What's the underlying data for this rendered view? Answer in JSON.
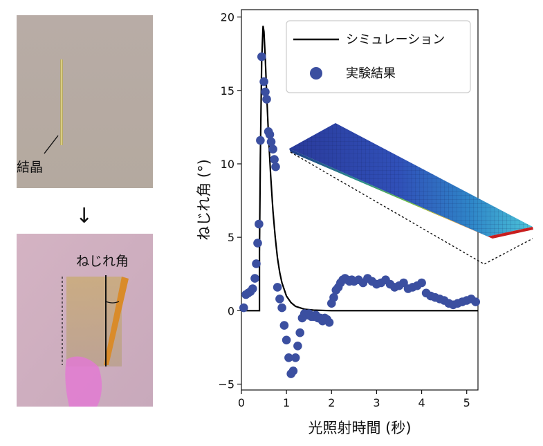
{
  "photos": {
    "top": {
      "label": "結晶"
    },
    "bottom": {
      "label": "ねじれ角"
    },
    "arrow": "↓"
  },
  "chart_data": {
    "type": "line",
    "xlabel": "光照射時間 (秒)",
    "ylabel": "ねじれ角 (°)",
    "xlim": [
      0,
      5.25
    ],
    "ylim": [
      -5.4,
      20.5
    ],
    "xticks": [
      "0",
      "1",
      "2",
      "3",
      "4",
      "5"
    ],
    "yticks": [
      "−5",
      "0",
      "5",
      "10",
      "15",
      "20"
    ],
    "grid": false,
    "legend_position": "top-right",
    "colors": {
      "simulation": "#000000",
      "experiment": "#3b4fa0"
    },
    "series": [
      {
        "name": "シミュレーション",
        "style": "line",
        "x": [
          0,
          0.4,
          0.4,
          0.42,
          0.45,
          0.48,
          0.5,
          0.53,
          0.56,
          0.6,
          0.65,
          0.7,
          0.75,
          0.8,
          0.85,
          0.9,
          1.0,
          1.1,
          1.2,
          1.4,
          1.6,
          2.0,
          3.0,
          4.0,
          5.25
        ],
        "y": [
          0,
          0,
          4.0,
          10.5,
          17.0,
          19.4,
          19.0,
          17.2,
          14.8,
          12.0,
          9.2,
          6.8,
          5.0,
          3.6,
          2.6,
          1.9,
          1.0,
          0.55,
          0.3,
          0.1,
          0.04,
          0.0,
          0.0,
          0.0,
          0.0
        ]
      },
      {
        "name": "実験結果",
        "style": "scatter",
        "x": [
          0.05,
          0.1,
          0.15,
          0.2,
          0.25,
          0.3,
          0.33,
          0.36,
          0.39,
          0.42,
          0.45,
          0.5,
          0.53,
          0.56,
          0.6,
          0.63,
          0.66,
          0.7,
          0.73,
          0.76,
          0.8,
          0.85,
          0.9,
          0.95,
          1.0,
          1.05,
          1.1,
          1.15,
          1.2,
          1.25,
          1.3,
          1.35,
          1.4,
          1.45,
          1.5,
          1.55,
          1.6,
          1.65,
          1.7,
          1.75,
          1.8,
          1.85,
          1.9,
          1.95,
          2.0,
          2.05,
          2.1,
          2.15,
          2.2,
          2.25,
          2.3,
          2.35,
          2.4,
          2.45,
          2.5,
          2.6,
          2.7,
          2.8,
          2.9,
          3.0,
          3.1,
          3.2,
          3.3,
          3.4,
          3.5,
          3.6,
          3.7,
          3.8,
          3.9,
          4.0,
          4.1,
          4.2,
          4.3,
          4.4,
          4.5,
          4.6,
          4.7,
          4.8,
          4.9,
          5.0,
          5.1,
          5.2
        ],
        "y": [
          0.2,
          1.1,
          1.2,
          1.3,
          1.5,
          2.2,
          3.2,
          4.6,
          5.9,
          11.6,
          17.3,
          15.6,
          14.9,
          14.4,
          12.2,
          12.0,
          11.5,
          11.0,
          10.3,
          9.8,
          1.6,
          0.8,
          0.2,
          -1.0,
          -2.0,
          -3.2,
          -4.3,
          -4.1,
          -3.2,
          -2.4,
          -1.5,
          -0.5,
          -0.2,
          -0.3,
          -0.2,
          -0.4,
          -0.4,
          -0.3,
          -0.5,
          -0.5,
          -0.7,
          -0.5,
          -0.6,
          -0.8,
          0.5,
          0.9,
          1.4,
          1.6,
          1.9,
          2.1,
          2.2,
          2.1,
          2.0,
          2.1,
          2.0,
          2.1,
          1.9,
          2.2,
          2.0,
          1.8,
          1.9,
          2.1,
          1.8,
          1.6,
          1.7,
          1.9,
          1.5,
          1.6,
          1.7,
          1.9,
          1.2,
          1.0,
          0.9,
          0.8,
          0.7,
          0.5,
          0.4,
          0.5,
          0.6,
          0.7,
          0.8,
          0.6
        ]
      }
    ]
  }
}
